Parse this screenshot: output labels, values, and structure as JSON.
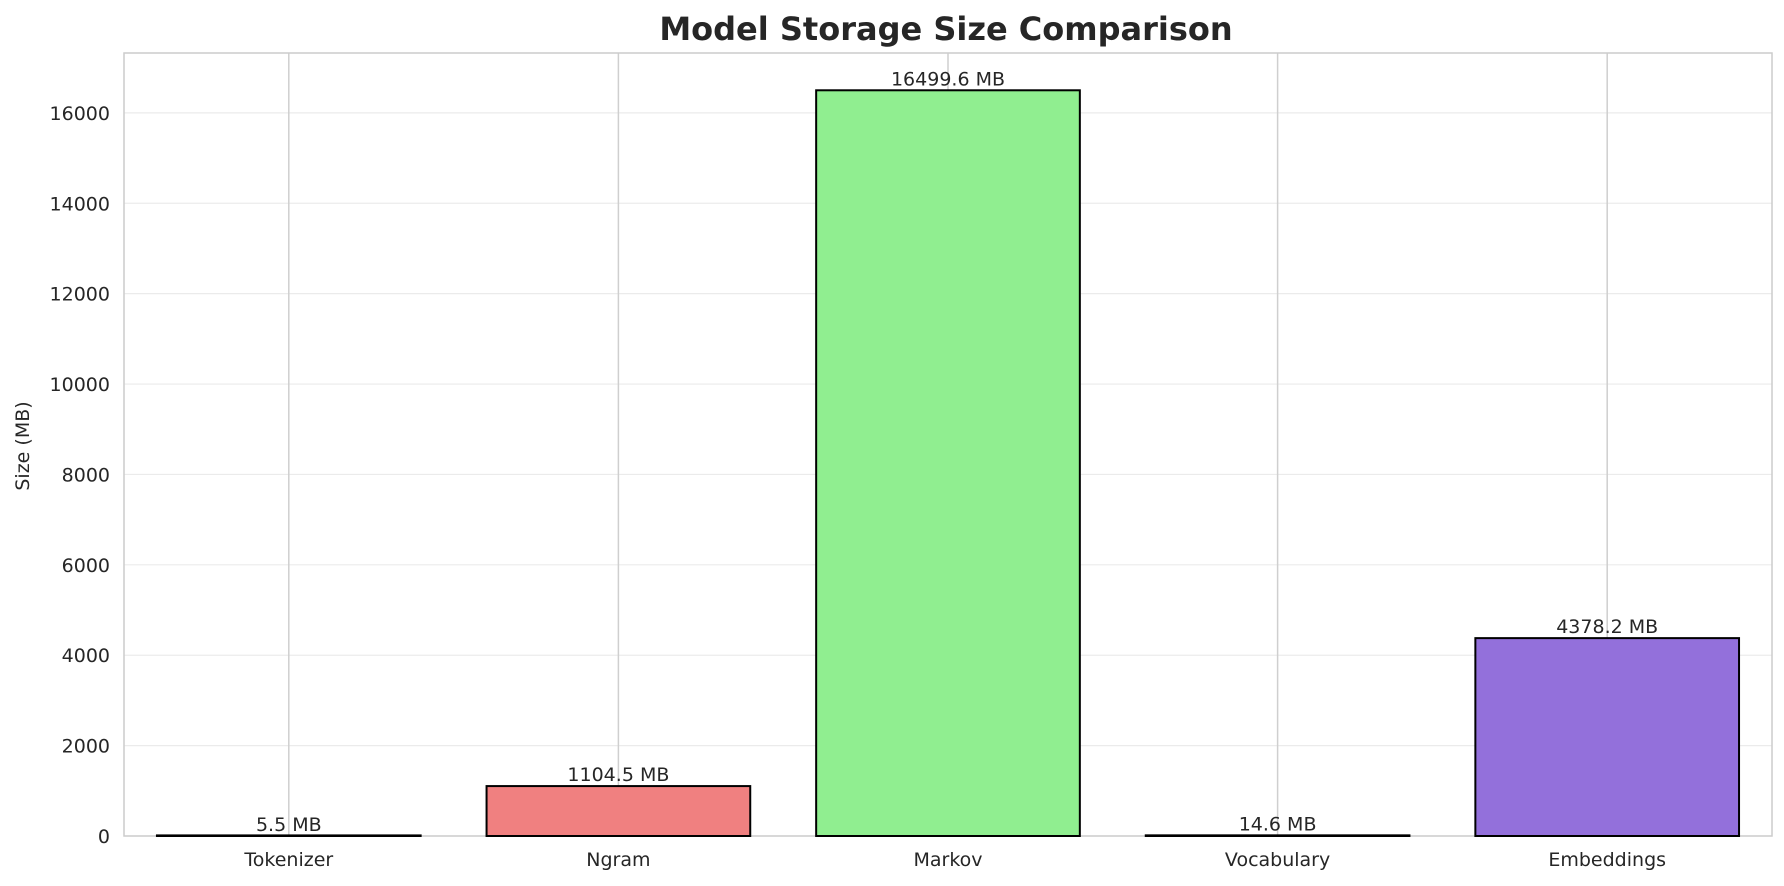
{
  "chart_data": {
    "type": "bar",
    "title": "Model Storage Size Comparison",
    "xlabel": "",
    "ylabel": "Size (MB)",
    "categories": [
      "Tokenizer",
      "Ngram",
      "Markov",
      "Vocabulary",
      "Embeddings"
    ],
    "values": [
      5.5,
      1104.5,
      16499.6,
      14.6,
      4378.2
    ],
    "data_labels": [
      "5.5 MB",
      "1104.5 MB",
      "16499.6 MB",
      "14.6 MB",
      "4378.2 MB"
    ],
    "colors": [
      "#87ceeb",
      "#f08080",
      "#90ee90",
      "#ffd700",
      "#9370db"
    ],
    "ylim": [
      0,
      17324.58
    ],
    "yticks": [
      0,
      2000,
      4000,
      6000,
      8000,
      10000,
      12000,
      14000,
      16000
    ],
    "grid": true,
    "legend": "none"
  }
}
